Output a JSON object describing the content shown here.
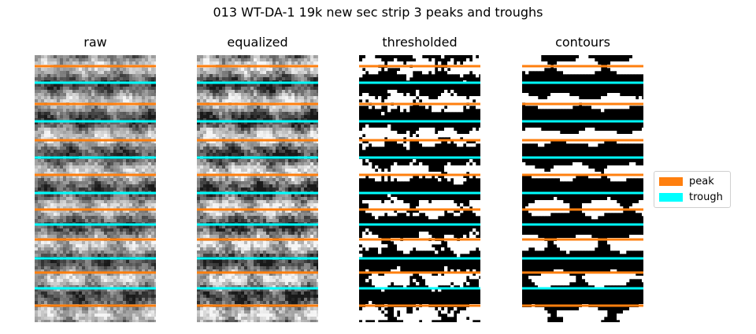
{
  "figure": {
    "title": "013 WT-DA-1 19k new sec strip 3 peaks and troughs"
  },
  "panels": [
    {
      "id": "raw",
      "title": "raw",
      "style": "gray"
    },
    {
      "id": "equalized",
      "title": "equalized",
      "style": "gray"
    },
    {
      "id": "thresholded",
      "title": "thresholded",
      "style": "binary"
    },
    {
      "id": "contours",
      "title": "contours",
      "style": "contour"
    }
  ],
  "legend": {
    "entries": [
      {
        "label": "peak",
        "color": "#ff7f0e"
      },
      {
        "label": "trough",
        "color": "#00ffff"
      }
    ]
  },
  "colors": {
    "peak": "#ff7f0e",
    "trough": "#00ffff",
    "background": "#ffffff"
  }
}
